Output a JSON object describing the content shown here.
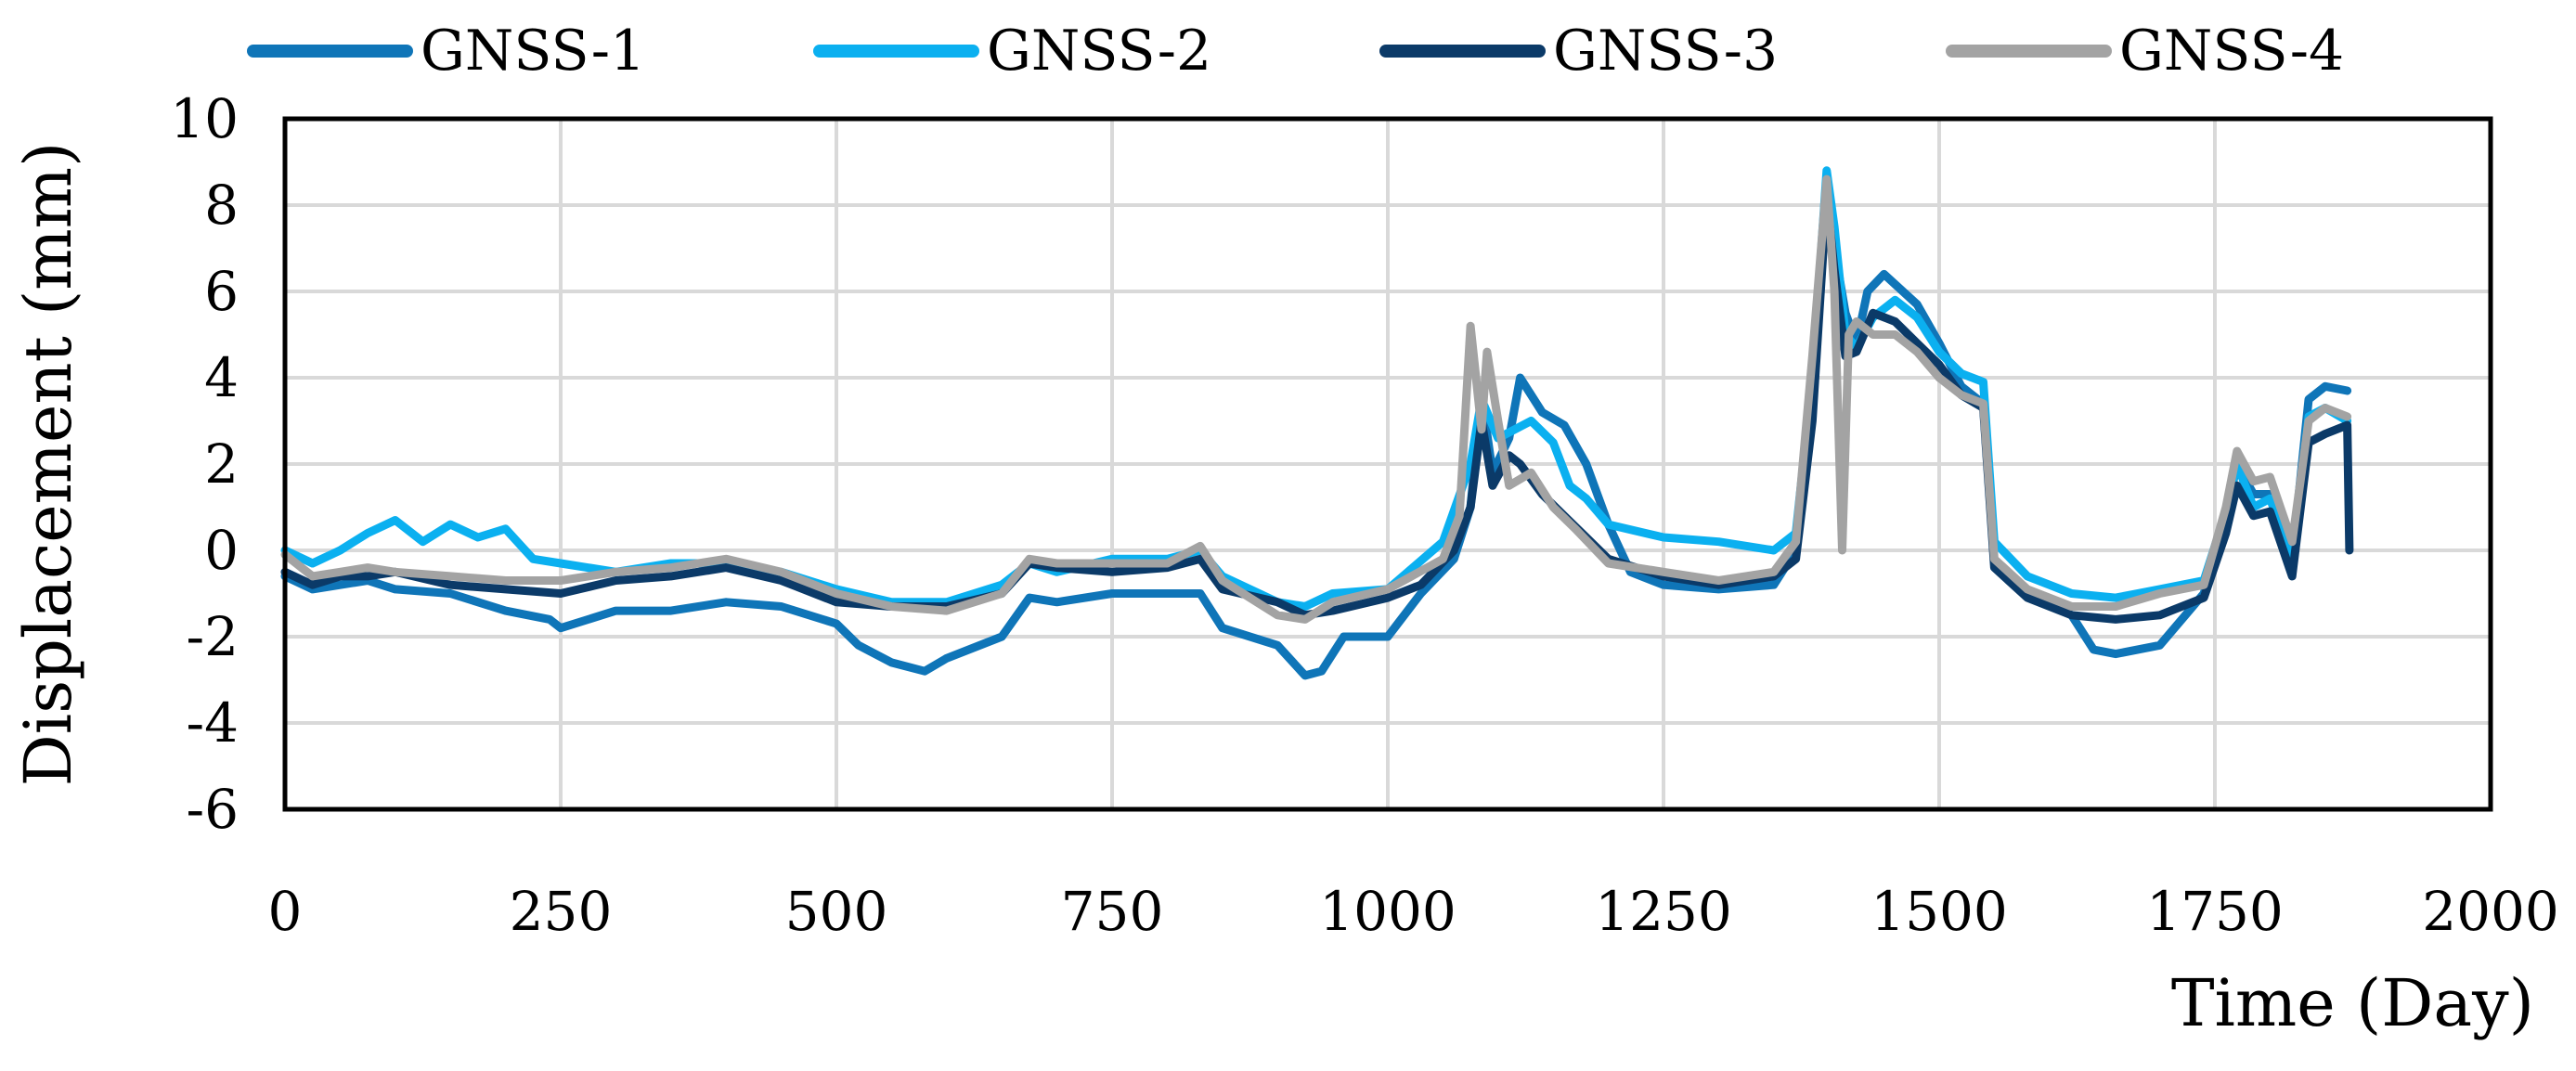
{
  "chart_data": {
    "type": "line",
    "title": "",
    "xlabel": "Time (Day)",
    "ylabel": "Displacement (mm)",
    "xlim": [
      0,
      2000
    ],
    "ylim": [
      -6,
      10
    ],
    "x_ticks": [
      "0",
      "250",
      "500",
      "750",
      "1000",
      "1250",
      "1500",
      "1750",
      "2000"
    ],
    "y_ticks": [
      "10",
      "8",
      "6",
      "4",
      "2",
      "0",
      "-2",
      "-4",
      "-6"
    ],
    "grid": true,
    "legend_position": "top",
    "series": [
      {
        "name": "GNSS-1",
        "color": "#0f75b8",
        "points": [
          [
            0,
            -0.6
          ],
          [
            25,
            -0.9
          ],
          [
            50,
            -0.8
          ],
          [
            75,
            -0.7
          ],
          [
            100,
            -0.9
          ],
          [
            150,
            -1.0
          ],
          [
            200,
            -1.4
          ],
          [
            240,
            -1.6
          ],
          [
            250,
            -1.8
          ],
          [
            300,
            -1.4
          ],
          [
            350,
            -1.4
          ],
          [
            400,
            -1.2
          ],
          [
            450,
            -1.3
          ],
          [
            500,
            -1.7
          ],
          [
            520,
            -2.2
          ],
          [
            550,
            -2.6
          ],
          [
            580,
            -2.8
          ],
          [
            600,
            -2.5
          ],
          [
            650,
            -2.0
          ],
          [
            675,
            -1.1
          ],
          [
            700,
            -1.2
          ],
          [
            750,
            -1.0
          ],
          [
            800,
            -1.0
          ],
          [
            830,
            -1.0
          ],
          [
            850,
            -1.8
          ],
          [
            900,
            -2.2
          ],
          [
            925,
            -2.9
          ],
          [
            940,
            -2.8
          ],
          [
            960,
            -2.0
          ],
          [
            1000,
            -2.0
          ],
          [
            1030,
            -1.0
          ],
          [
            1060,
            -0.2
          ],
          [
            1075,
            1.0
          ],
          [
            1085,
            3.6
          ],
          [
            1095,
            1.8
          ],
          [
            1110,
            2.6
          ],
          [
            1120,
            4.0
          ],
          [
            1140,
            3.2
          ],
          [
            1160,
            2.9
          ],
          [
            1180,
            2.0
          ],
          [
            1200,
            0.6
          ],
          [
            1220,
            -0.5
          ],
          [
            1250,
            -0.8
          ],
          [
            1300,
            -0.9
          ],
          [
            1350,
            -0.8
          ],
          [
            1370,
            0.0
          ],
          [
            1385,
            3.5
          ],
          [
            1398,
            8.5
          ],
          [
            1405,
            7.0
          ],
          [
            1415,
            5.5
          ],
          [
            1425,
            4.8
          ],
          [
            1435,
            6.0
          ],
          [
            1450,
            6.4
          ],
          [
            1480,
            5.7
          ],
          [
            1500,
            4.8
          ],
          [
            1520,
            3.8
          ],
          [
            1540,
            3.4
          ],
          [
            1550,
            -0.3
          ],
          [
            1580,
            -1.0
          ],
          [
            1620,
            -1.5
          ],
          [
            1640,
            -2.3
          ],
          [
            1660,
            -2.4
          ],
          [
            1700,
            -2.2
          ],
          [
            1740,
            -1.0
          ],
          [
            1760,
            0.8
          ],
          [
            1770,
            2.0
          ],
          [
            1785,
            1.3
          ],
          [
            1800,
            1.3
          ],
          [
            1820,
            -0.2
          ],
          [
            1835,
            3.5
          ],
          [
            1850,
            3.8
          ],
          [
            1870,
            3.7
          ]
        ]
      },
      {
        "name": "GNSS-2",
        "color": "#0bb0f0",
        "points": [
          [
            0,
            0.0
          ],
          [
            25,
            -0.3
          ],
          [
            50,
            0.0
          ],
          [
            75,
            0.4
          ],
          [
            100,
            0.7
          ],
          [
            125,
            0.2
          ],
          [
            150,
            0.6
          ],
          [
            175,
            0.3
          ],
          [
            200,
            0.5
          ],
          [
            225,
            -0.2
          ],
          [
            250,
            -0.3
          ],
          [
            300,
            -0.5
          ],
          [
            350,
            -0.3
          ],
          [
            400,
            -0.3
          ],
          [
            450,
            -0.5
          ],
          [
            500,
            -0.9
          ],
          [
            550,
            -1.2
          ],
          [
            600,
            -1.2
          ],
          [
            650,
            -0.8
          ],
          [
            675,
            -0.3
          ],
          [
            700,
            -0.5
          ],
          [
            750,
            -0.2
          ],
          [
            800,
            -0.2
          ],
          [
            830,
            0.0
          ],
          [
            850,
            -0.6
          ],
          [
            900,
            -1.2
          ],
          [
            925,
            -1.3
          ],
          [
            950,
            -1.0
          ],
          [
            1000,
            -0.9
          ],
          [
            1050,
            0.2
          ],
          [
            1075,
            2.0
          ],
          [
            1085,
            3.5
          ],
          [
            1100,
            2.6
          ],
          [
            1130,
            3.0
          ],
          [
            1150,
            2.5
          ],
          [
            1165,
            1.5
          ],
          [
            1180,
            1.2
          ],
          [
            1200,
            0.6
          ],
          [
            1250,
            0.3
          ],
          [
            1300,
            0.2
          ],
          [
            1350,
            0.0
          ],
          [
            1370,
            0.4
          ],
          [
            1385,
            4.0
          ],
          [
            1398,
            8.8
          ],
          [
            1405,
            7.5
          ],
          [
            1415,
            5.0
          ],
          [
            1425,
            4.7
          ],
          [
            1440,
            5.4
          ],
          [
            1460,
            5.8
          ],
          [
            1480,
            5.4
          ],
          [
            1500,
            4.6
          ],
          [
            1520,
            4.1
          ],
          [
            1540,
            3.9
          ],
          [
            1550,
            0.2
          ],
          [
            1580,
            -0.6
          ],
          [
            1620,
            -1.0
          ],
          [
            1660,
            -1.1
          ],
          [
            1700,
            -0.9
          ],
          [
            1740,
            -0.7
          ],
          [
            1760,
            0.9
          ],
          [
            1770,
            2.0
          ],
          [
            1785,
            1.0
          ],
          [
            1800,
            1.2
          ],
          [
            1820,
            -0.2
          ],
          [
            1835,
            3.1
          ],
          [
            1850,
            3.3
          ],
          [
            1870,
            3.0
          ]
        ]
      },
      {
        "name": "GNSS-3",
        "color": "#0b3a68",
        "points": [
          [
            0,
            -0.5
          ],
          [
            25,
            -0.8
          ],
          [
            50,
            -0.6
          ],
          [
            75,
            -0.6
          ],
          [
            100,
            -0.5
          ],
          [
            150,
            -0.8
          ],
          [
            200,
            -0.9
          ],
          [
            250,
            -1.0
          ],
          [
            300,
            -0.7
          ],
          [
            350,
            -0.6
          ],
          [
            400,
            -0.4
          ],
          [
            450,
            -0.7
          ],
          [
            500,
            -1.2
          ],
          [
            550,
            -1.3
          ],
          [
            600,
            -1.3
          ],
          [
            650,
            -1.0
          ],
          [
            675,
            -0.3
          ],
          [
            700,
            -0.4
          ],
          [
            750,
            -0.5
          ],
          [
            800,
            -0.4
          ],
          [
            830,
            -0.2
          ],
          [
            850,
            -0.9
          ],
          [
            900,
            -1.2
          ],
          [
            925,
            -1.5
          ],
          [
            950,
            -1.4
          ],
          [
            1000,
            -1.1
          ],
          [
            1030,
            -0.8
          ],
          [
            1060,
            0.0
          ],
          [
            1075,
            1.0
          ],
          [
            1085,
            3.0
          ],
          [
            1095,
            1.5
          ],
          [
            1110,
            2.2
          ],
          [
            1120,
            2.0
          ],
          [
            1140,
            1.3
          ],
          [
            1160,
            0.8
          ],
          [
            1180,
            0.3
          ],
          [
            1200,
            -0.2
          ],
          [
            1250,
            -0.6
          ],
          [
            1300,
            -0.8
          ],
          [
            1350,
            -0.6
          ],
          [
            1370,
            -0.2
          ],
          [
            1385,
            3.0
          ],
          [
            1398,
            8.2
          ],
          [
            1405,
            6.5
          ],
          [
            1415,
            4.5
          ],
          [
            1425,
            4.6
          ],
          [
            1440,
            5.5
          ],
          [
            1460,
            5.3
          ],
          [
            1480,
            4.8
          ],
          [
            1500,
            4.3
          ],
          [
            1520,
            3.6
          ],
          [
            1540,
            3.3
          ],
          [
            1550,
            -0.4
          ],
          [
            1580,
            -1.1
          ],
          [
            1620,
            -1.5
          ],
          [
            1660,
            -1.6
          ],
          [
            1700,
            -1.5
          ],
          [
            1740,
            -1.1
          ],
          [
            1760,
            0.4
          ],
          [
            1770,
            1.5
          ],
          [
            1785,
            0.8
          ],
          [
            1800,
            0.9
          ],
          [
            1820,
            -0.6
          ],
          [
            1835,
            2.5
          ],
          [
            1850,
            2.7
          ],
          [
            1870,
            2.9
          ],
          [
            1872,
            0.0
          ]
        ]
      },
      {
        "name": "GNSS-4",
        "color": "#a3a3a3",
        "points": [
          [
            0,
            -0.1
          ],
          [
            25,
            -0.6
          ],
          [
            50,
            -0.5
          ],
          [
            75,
            -0.4
          ],
          [
            100,
            -0.5
          ],
          [
            150,
            -0.6
          ],
          [
            200,
            -0.7
          ],
          [
            250,
            -0.7
          ],
          [
            300,
            -0.5
          ],
          [
            350,
            -0.4
          ],
          [
            400,
            -0.2
          ],
          [
            450,
            -0.5
          ],
          [
            500,
            -1.0
          ],
          [
            550,
            -1.3
          ],
          [
            600,
            -1.4
          ],
          [
            650,
            -1.0
          ],
          [
            675,
            -0.2
          ],
          [
            700,
            -0.3
          ],
          [
            750,
            -0.3
          ],
          [
            800,
            -0.3
          ],
          [
            830,
            0.1
          ],
          [
            850,
            -0.7
          ],
          [
            900,
            -1.5
          ],
          [
            925,
            -1.6
          ],
          [
            950,
            -1.2
          ],
          [
            1000,
            -0.9
          ],
          [
            1050,
            -0.2
          ],
          [
            1065,
            0.8
          ],
          [
            1075,
            5.2
          ],
          [
            1085,
            2.8
          ],
          [
            1090,
            4.6
          ],
          [
            1100,
            3.0
          ],
          [
            1110,
            1.5
          ],
          [
            1130,
            1.8
          ],
          [
            1150,
            1.0
          ],
          [
            1170,
            0.5
          ],
          [
            1200,
            -0.3
          ],
          [
            1250,
            -0.5
          ],
          [
            1300,
            -0.7
          ],
          [
            1350,
            -0.5
          ],
          [
            1370,
            0.2
          ],
          [
            1385,
            4.5
          ],
          [
            1398,
            8.6
          ],
          [
            1405,
            6.0
          ],
          [
            1412,
            0.0
          ],
          [
            1418,
            5.0
          ],
          [
            1425,
            5.3
          ],
          [
            1440,
            5.0
          ],
          [
            1460,
            5.0
          ],
          [
            1480,
            4.6
          ],
          [
            1500,
            4.0
          ],
          [
            1520,
            3.6
          ],
          [
            1540,
            3.4
          ],
          [
            1550,
            -0.2
          ],
          [
            1580,
            -0.9
          ],
          [
            1620,
            -1.3
          ],
          [
            1660,
            -1.3
          ],
          [
            1700,
            -1.0
          ],
          [
            1740,
            -0.8
          ],
          [
            1760,
            1.0
          ],
          [
            1770,
            2.3
          ],
          [
            1785,
            1.6
          ],
          [
            1800,
            1.7
          ],
          [
            1820,
            0.2
          ],
          [
            1835,
            3.0
          ],
          [
            1850,
            3.3
          ],
          [
            1870,
            3.1
          ]
        ]
      }
    ]
  }
}
